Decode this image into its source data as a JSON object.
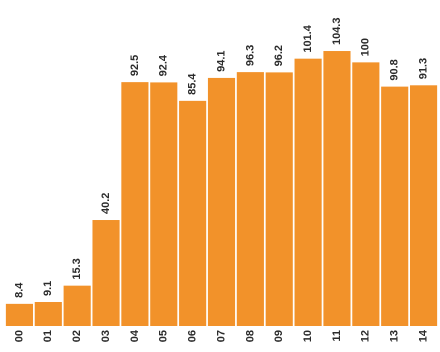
{
  "chart_data": {
    "type": "bar",
    "categories": [
      "00",
      "01",
      "02",
      "03",
      "04",
      "05",
      "06",
      "07",
      "08",
      "09",
      "10",
      "11",
      "12",
      "13",
      "14"
    ],
    "values": [
      8.4,
      9.1,
      15.3,
      40.2,
      92.5,
      92.4,
      85.4,
      94.1,
      96.3,
      96.2,
      101.4,
      104.3,
      100.0,
      90.8,
      91.3
    ],
    "color": "#f2922a",
    "ylim": [
      0,
      110
    ]
  }
}
